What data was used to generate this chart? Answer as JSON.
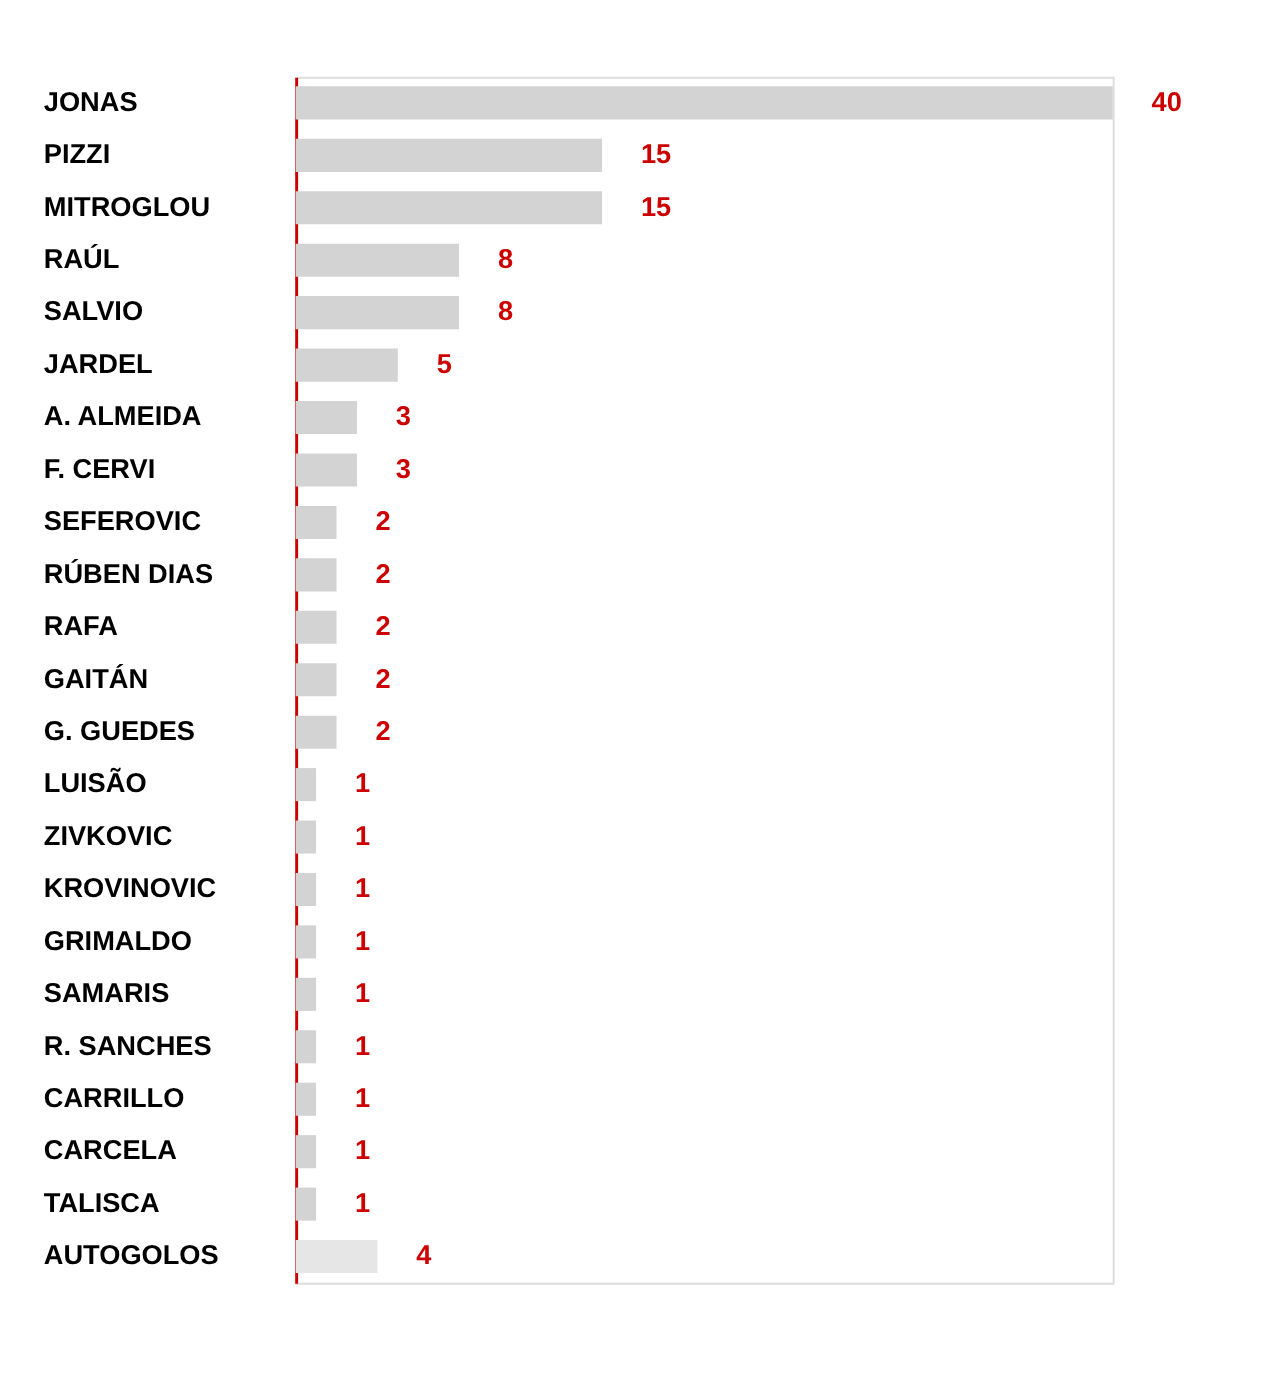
{
  "chart_data": {
    "type": "bar",
    "orientation": "horizontal",
    "tick_labels": "y",
    "data_labels": true,
    "grid": false,
    "categories": [
      "JONAS",
      "PIZZI",
      "MITROGLOU",
      "RAÚL",
      "SALVIO",
      "JARDEL",
      "A. ALMEIDA",
      "F. CERVI",
      "SEFEROVIC",
      "RÚBEN DIAS",
      "RAFA",
      "GAITÁN",
      "G. GUEDES",
      "LUISÃO",
      "ZIVKOVIC",
      "KROVINOVIC",
      "GRIMALDO",
      "SAMARIS",
      "R. SANCHES",
      "CARRILLO",
      "CARCELA",
      "TALISCA",
      "AUTOGOLOS"
    ],
    "values": [
      40,
      15,
      15,
      8,
      8,
      5,
      3,
      3,
      2,
      2,
      2,
      2,
      2,
      1,
      1,
      1,
      1,
      1,
      1,
      1,
      1,
      1,
      4
    ],
    "colors": [
      "#d3d3d3",
      "#d3d3d3",
      "#d3d3d3",
      "#d3d3d3",
      "#d3d3d3",
      "#d3d3d3",
      "#d3d3d3",
      "#d3d3d3",
      "#d3d3d3",
      "#d3d3d3",
      "#d3d3d3",
      "#d3d3d3",
      "#d3d3d3",
      "#d3d3d3",
      "#d3d3d3",
      "#d3d3d3",
      "#d3d3d3",
      "#d3d3d3",
      "#d3d3d3",
      "#d3d3d3",
      "#d3d3d3",
      "#d3d3d3",
      "#e6e6e6"
    ]
  }
}
